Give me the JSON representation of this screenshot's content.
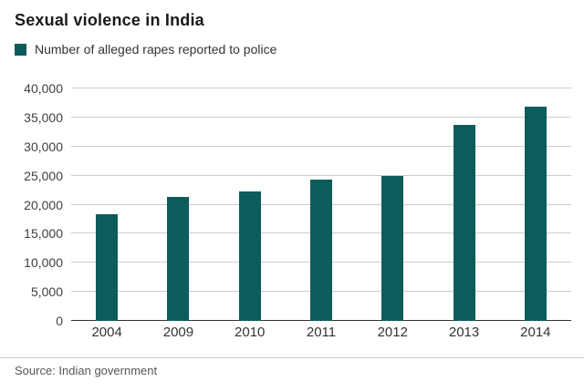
{
  "title": "Sexual violence in India",
  "legend": {
    "label": "Number of alleged rapes reported to police",
    "swatch_color": "#0d5c5c"
  },
  "source": "Source: Indian government",
  "chart_data": {
    "type": "bar",
    "title": "Sexual violence in India",
    "legend_label": "Number of alleged rapes reported to police",
    "categories": [
      "2004",
      "2009",
      "2010",
      "2011",
      "2012",
      "2013",
      "2014"
    ],
    "values": [
      18300,
      21400,
      22200,
      24300,
      25000,
      33800,
      36800
    ],
    "xlabel": "",
    "ylabel": "",
    "ylim": [
      0,
      40000
    ],
    "ytick_step": 5000,
    "ytick_labels": [
      "0",
      "5,000",
      "10,000",
      "15,000",
      "20,000",
      "25,000",
      "30,000",
      "35,000",
      "40,000"
    ],
    "bar_color": "#0d5c5c",
    "grid": "horizontal",
    "legend_position": "top-left"
  }
}
